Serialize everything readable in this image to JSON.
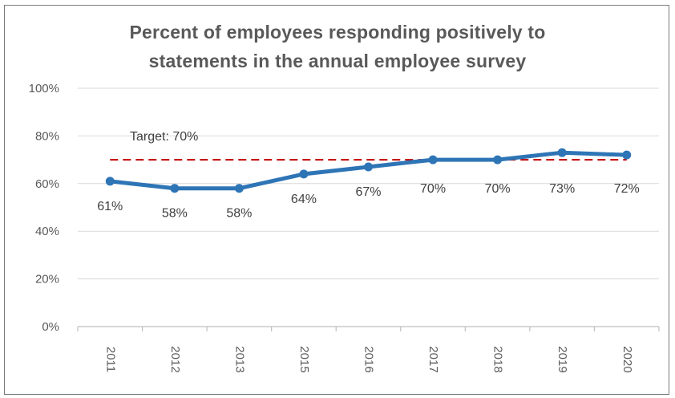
{
  "chart_data": {
    "type": "line",
    "title_lines": [
      "Percent of employees responding positively to",
      "statements in the annual employee survey"
    ],
    "categories": [
      "2011",
      "2012",
      "2013",
      "2015",
      "2016",
      "2017",
      "2018",
      "2019",
      "2020"
    ],
    "series": [
      {
        "values": [
          61,
          58,
          58,
          64,
          67,
          70,
          70,
          73,
          72
        ],
        "data_labels": [
          "61%",
          "58%",
          "58%",
          "64%",
          "67%",
          "70%",
          "70%",
          "73%",
          "72%"
        ],
        "color": "#2e75b6"
      }
    ],
    "target": {
      "value": 70,
      "label": "Target: 70%",
      "color": "#c00000",
      "style": "dashed"
    },
    "ylim": [
      0,
      100
    ],
    "yticks": [
      0,
      20,
      40,
      60,
      80,
      100
    ],
    "ytick_labels": [
      "0%",
      "20%",
      "40%",
      "60%",
      "80%",
      "100%"
    ],
    "gridlines": true,
    "xlabel": "",
    "ylabel": "",
    "legend": "none"
  }
}
